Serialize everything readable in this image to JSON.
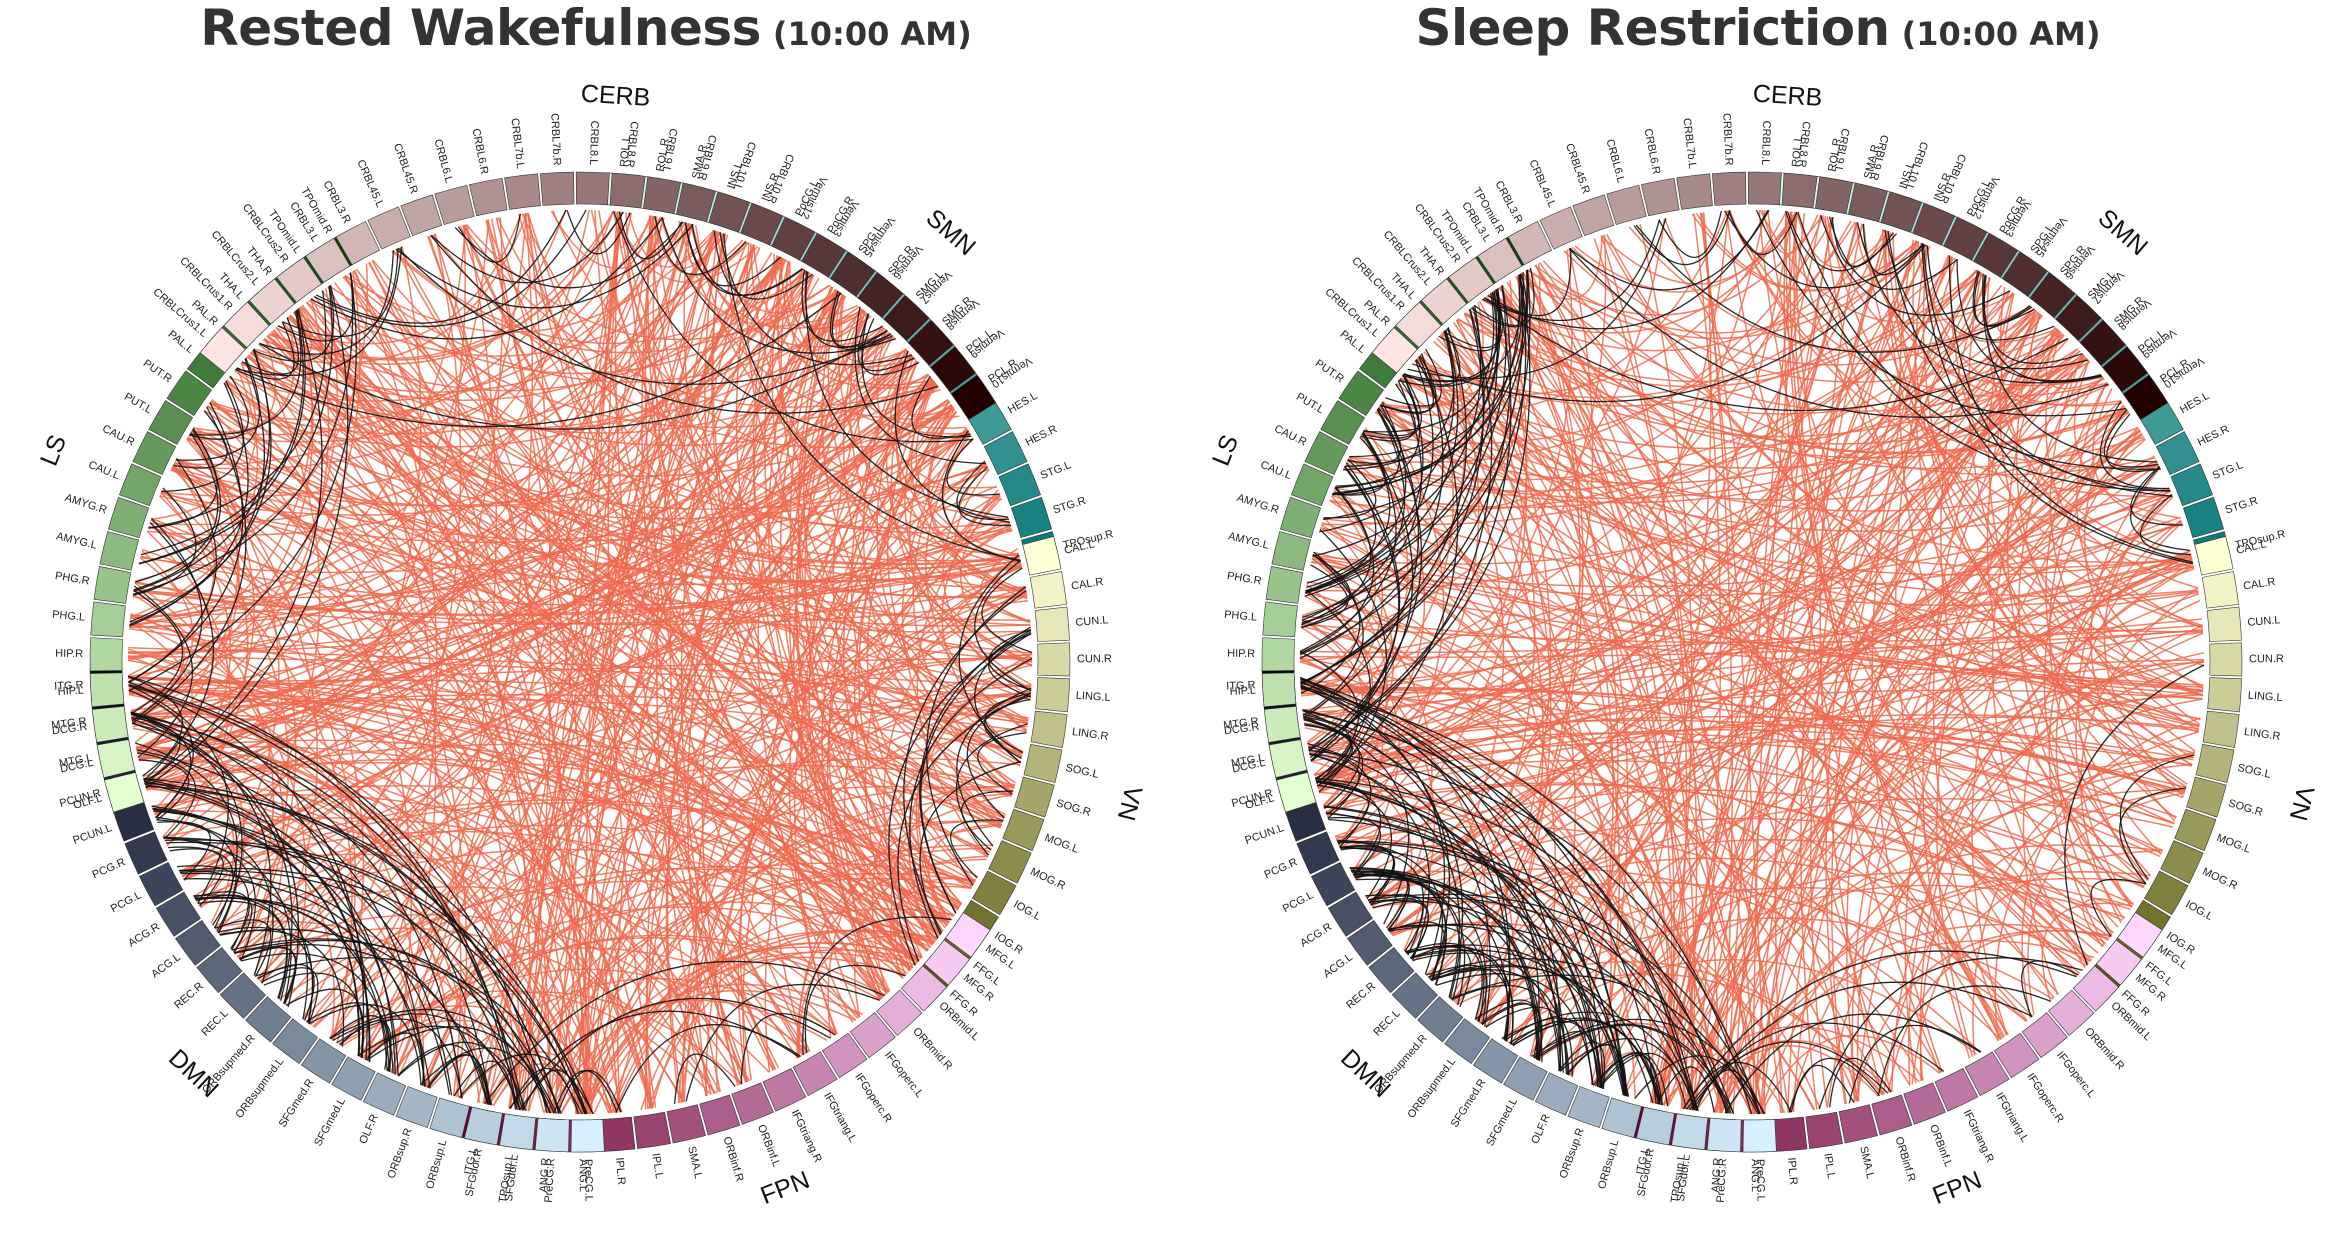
{
  "panels": [
    {
      "title": "Rested Wakefulness",
      "time": "(10:00 AM)",
      "variant": "rested"
    },
    {
      "title": "Sleep Restriction",
      "time": "(10:00 AM)",
      "variant": "restricted"
    }
  ],
  "edge_colors": {
    "between_network": "#ee6a4e",
    "within_network": "#111111"
  },
  "networks": [
    {
      "name": "SMN",
      "regions": [
        "ROL.L",
        "ROL.R",
        "SMA.R",
        "INS.L",
        "INS.R",
        "PoCG.L",
        "PoCG.R",
        "SPG.L",
        "SPG.R",
        "SMG.L",
        "SMG.R",
        "PCL.L",
        "PCL.R",
        "HES.L",
        "HES.R",
        "STG.L",
        "STG.R",
        "TPOsup.R"
      ],
      "colors": [
        "#e6fff5",
        "#0a7a7a"
      ]
    },
    {
      "name": "VN",
      "regions": [
        "CAL.L",
        "CAL.R",
        "CUN.L",
        "CUN.R",
        "LING.L",
        "LING.R",
        "SOG.L",
        "SOG.R",
        "MOG.L",
        "MOG.R",
        "IOG.L",
        "IOG.R",
        "FFG.L",
        "FFG.R"
      ],
      "colors": [
        "#ffffd6",
        "#5a5a10"
      ]
    },
    {
      "name": "FPN",
      "regions": [
        "MFG.L",
        "MFG.R",
        "ORBmid.L",
        "ORBmid.R",
        "IFGoperc.L",
        "IFGoperc.R",
        "IFGtriang.L",
        "IFGtriang.R",
        "ORBinf.L",
        "ORBinf.R",
        "SMA.L",
        "IPL.L",
        "IPL.R",
        "ANG.L",
        "ANG.R",
        "TPOsup.L",
        "ITG.L"
      ],
      "colors": [
        "#ffd6ff",
        "#6a0030"
      ]
    },
    {
      "name": "DMN",
      "regions": [
        "PreCG.L",
        "PreCG.R",
        "SFGdor.L",
        "SFGdor.R",
        "ORBsup.L",
        "ORBsup.R",
        "OLF.R",
        "SFGmed.L",
        "SFGmed.R",
        "ORBsupmed.L",
        "ORBsupmed.R",
        "REC.L",
        "REC.R",
        "ACG.L",
        "ACG.R",
        "PCG.L",
        "PCG.R",
        "PCUN.L",
        "PCUN.R",
        "MTG.L",
        "MTG.R",
        "ITG.R"
      ],
      "colors": [
        "#d6f0ff",
        "#000018"
      ]
    },
    {
      "name": "LS",
      "regions": [
        "OLF.L",
        "DCG.L",
        "DCG.R",
        "HIP.L",
        "HIP.R",
        "PHG.L",
        "PHG.R",
        "AMYG.L",
        "AMYG.R",
        "CAU.L",
        "CAU.R",
        "PUT.L",
        "PUT.R",
        "PAL.L",
        "PAL.R",
        "THA.L",
        "THA.R",
        "TPOmid.L",
        "TPOmid.R"
      ],
      "colors": [
        "#e4ffd0",
        "#004a00"
      ]
    },
    {
      "name": "CERB",
      "regions": [
        "CRBLCrus1.L",
        "CRBLCrus1.R",
        "CRBLCrus2.L",
        "CRBLCrus2.R",
        "CRBL3.L",
        "CRBL3.R",
        "CRBL45.L",
        "CRBL45.R",
        "CRBL6.L",
        "CRBL6.R",
        "CRBL7b.L",
        "CRBL7b.R",
        "CRBL8.L",
        "CRBL8.R",
        "CRBL9.L",
        "CRBL9.R",
        "CRBL10.L",
        "CRBL10.R",
        "Vermis12",
        "Vermis3",
        "Vermis45",
        "Vermis6",
        "Vermis7",
        "Vermis8",
        "Vermis9",
        "Vermis10"
      ],
      "colors": [
        "#ffe4e4",
        "#220000"
      ]
    }
  ]
}
